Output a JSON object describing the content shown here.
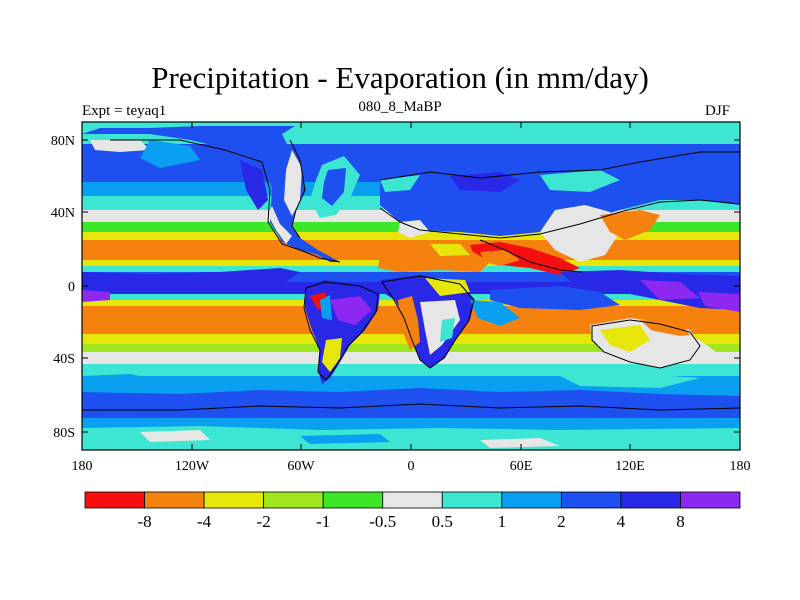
{
  "title": "Precipitation - Evaporation (in mm/day)",
  "subtitle_left": "Expt = teyaq1",
  "subtitle_center": "080_8_MaBP",
  "subtitle_right": "DJF",
  "axes": {
    "y_ticks": [
      "80N",
      "40N",
      "0",
      "40S",
      "80S"
    ],
    "x_ticks": [
      "180",
      "120W",
      "60W",
      "0",
      "60E",
      "120E",
      "180"
    ]
  },
  "colorbar": {
    "colors": [
      "#f50f0f",
      "#f5820f",
      "#e6e60a",
      "#a0e61e",
      "#3ce628",
      "#e6e6e6",
      "#3ce6d2",
      "#0a9ff0",
      "#1e50f0",
      "#2828e6",
      "#8c28f0"
    ],
    "labels": [
      "-8",
      "-4",
      "-2",
      "-1",
      "-0.5",
      "0.5",
      "1",
      "2",
      "4",
      "8"
    ]
  }
}
